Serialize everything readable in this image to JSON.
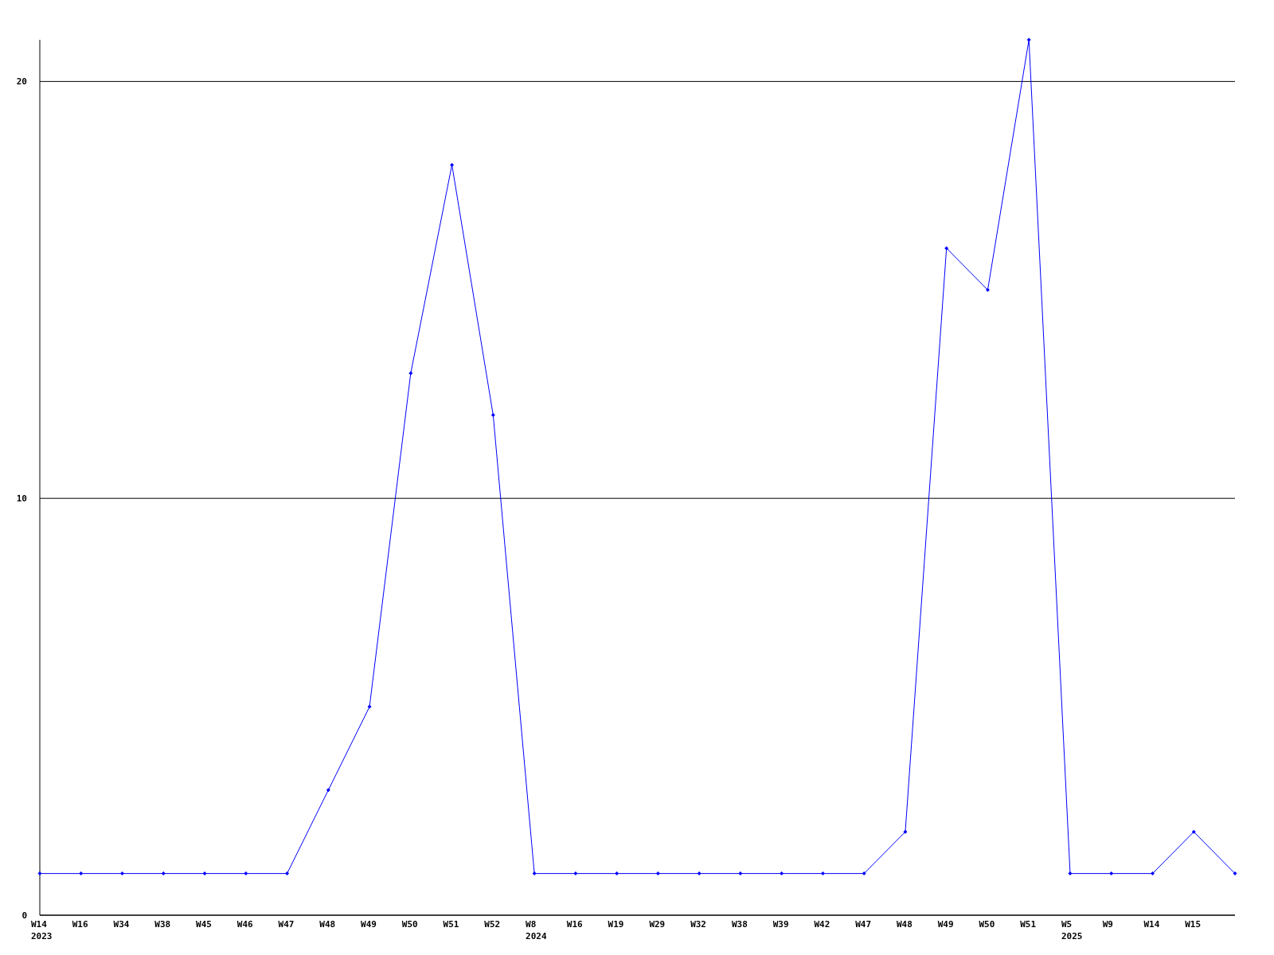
{
  "chart_data": {
    "type": "line",
    "categories": [
      "W14\n2023",
      "W16",
      "W34",
      "W38",
      "W45",
      "W46",
      "W47",
      "W48",
      "W49",
      "W50",
      "W51",
      "W52",
      "W8\n2024",
      "W16",
      "W19",
      "W29",
      "W32",
      "W38",
      "W39",
      "W42",
      "W47",
      "W48",
      "W49",
      "W50",
      "W51",
      "W5\n2025",
      "W9",
      "W14",
      "W15",
      null
    ],
    "series": [
      {
        "color": "#0000ff",
        "values": [
          1,
          1,
          1,
          1,
          1,
          1,
          1,
          3,
          5,
          13,
          18,
          12,
          1,
          1,
          1,
          1,
          1,
          1,
          1,
          1,
          1,
          2,
          16,
          15,
          21,
          1,
          1,
          1,
          2,
          1
        ]
      }
    ],
    "ylim": [
      0,
      21
    ],
    "yticks": [
      0,
      10,
      20
    ],
    "grid": "y",
    "marker": "diamond",
    "line_style": "solid"
  }
}
